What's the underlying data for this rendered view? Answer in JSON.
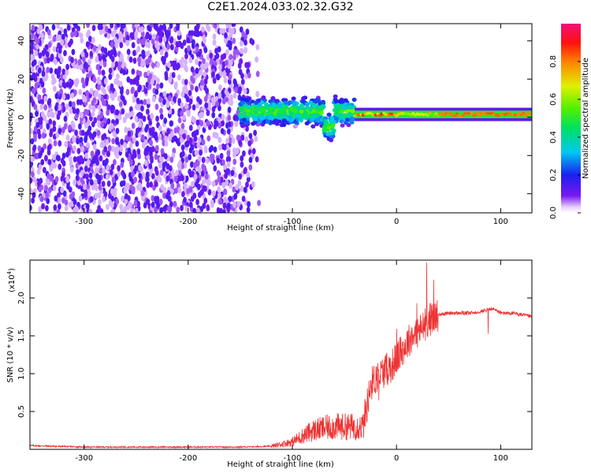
{
  "title": "C2E1.2024.033.02.32.G32",
  "colors": {
    "axis": "#000000",
    "snr_line": "#ee3333",
    "spectro_purple": "#7a18f0"
  },
  "chart_data": [
    {
      "type": "heatmap",
      "title": "C2E1.2024.033.02.32.G32",
      "xlabel": "Height of straight line (km)",
      "ylabel": "Frequency (Hz)",
      "xlim": [
        -352,
        130
      ],
      "ylim": [
        -50,
        49
      ],
      "xticks": [
        -300,
        -200,
        -100,
        0,
        100
      ],
      "yticks": [
        -40,
        -20,
        0,
        20,
        40
      ],
      "colorbar": {
        "label": "Normalized spectral amplitude",
        "range": [
          0,
          1
        ],
        "ticks": [
          "0.0",
          "0.2",
          "0.4",
          "0.6",
          "0.8"
        ],
        "colormap": "rainbow (purple→blue→cyan→green→yellow→red→magenta)"
      },
      "features": [
        {
          "x_range": [
            -352,
            -130
          ],
          "y_range": [
            -50,
            49
          ],
          "level": 0.05,
          "description": "broadband noise"
        },
        {
          "x_range": [
            -150,
            -40
          ],
          "y_center": 3,
          "y_half_width": 8,
          "level": 0.45
        },
        {
          "x_range": [
            -40,
            130
          ],
          "y_center": 1.5,
          "y_half_width": 2,
          "level": 0.8
        }
      ]
    },
    {
      "type": "line",
      "xlabel": "Height of straight line (km)",
      "ylabel": "SNR (10 * v/v)",
      "y_multiplier_label": "(x10",
      "y_multiplier_exp": "4",
      "xlim": [
        -352,
        130
      ],
      "ylim": [
        0,
        2.5
      ],
      "xticks": [
        -300,
        -200,
        -100,
        0,
        100
      ],
      "yticks": [
        "0.5",
        "1.0",
        "1.5",
        "2.0"
      ],
      "series": [
        {
          "x": [
            -352,
            -300,
            -250,
            -200,
            -150,
            -120,
            -100,
            -90,
            -80,
            -70,
            -60,
            -50,
            -40,
            -32,
            -28,
            -25,
            -20,
            -15,
            -10,
            -5,
            0,
            5,
            10,
            15,
            20,
            25,
            30,
            40,
            50,
            60,
            70,
            80,
            90,
            95,
            100,
            110,
            120,
            130
          ],
          "values": [
            0.05,
            0.03,
            0.03,
            0.03,
            0.03,
            0.04,
            0.1,
            0.18,
            0.25,
            0.28,
            0.3,
            0.3,
            0.3,
            0.3,
            0.6,
            0.85,
            0.95,
            1.0,
            1.05,
            1.1,
            1.2,
            1.3,
            1.4,
            1.5,
            1.55,
            1.6,
            1.7,
            1.78,
            1.8,
            1.8,
            1.8,
            1.82,
            1.85,
            1.85,
            1.8,
            1.8,
            1.78,
            1.75
          ]
        }
      ]
    }
  ]
}
